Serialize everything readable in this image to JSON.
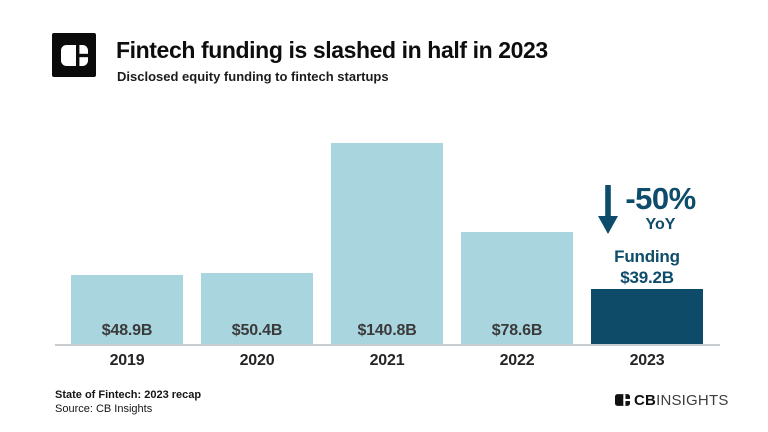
{
  "header": {
    "title": "Fintech funding is slashed in half in 2023",
    "subtitle": "Disclosed equity funding to fintech startups"
  },
  "chart_data": {
    "type": "bar",
    "title": "Fintech funding is slashed in half in 2023",
    "subtitle": "Disclosed equity funding to fintech startups",
    "categories": [
      "2019",
      "2020",
      "2021",
      "2022",
      "2023"
    ],
    "values": [
      48.9,
      50.4,
      140.8,
      78.6,
      39.2
    ],
    "value_labels": [
      "$48.9B",
      "$50.4B",
      "$140.8B",
      "$78.6B",
      ""
    ],
    "unit": "USD billions",
    "ylim": [
      0,
      157
    ],
    "grid": false,
    "legend": false,
    "bar_colors": [
      "#a9d5df",
      "#a9d5df",
      "#a9d5df",
      "#a9d5df",
      "#0d4b68"
    ],
    "annotation": {
      "pct_change": "-50%",
      "period": "YoY",
      "funding_label": "Funding",
      "funding_value": "$39.2B"
    }
  },
  "annotation": {
    "pct": "-50%",
    "yoy": "YoY",
    "funding_label": "Funding",
    "funding_value": "$39.2B"
  },
  "footer": {
    "note": "State of Fintech: 2023 recap",
    "source": "Source: CB Insights",
    "brand_cb": "CB",
    "brand_insights": "INSIGHTS"
  },
  "colors": {
    "bar_light": "#a9d5df",
    "bar_dark": "#0d4b68",
    "annotation_navy": "#0e4c6b",
    "axis_gray": "#c9cdd0",
    "label_dark": "#3a3a3a"
  }
}
